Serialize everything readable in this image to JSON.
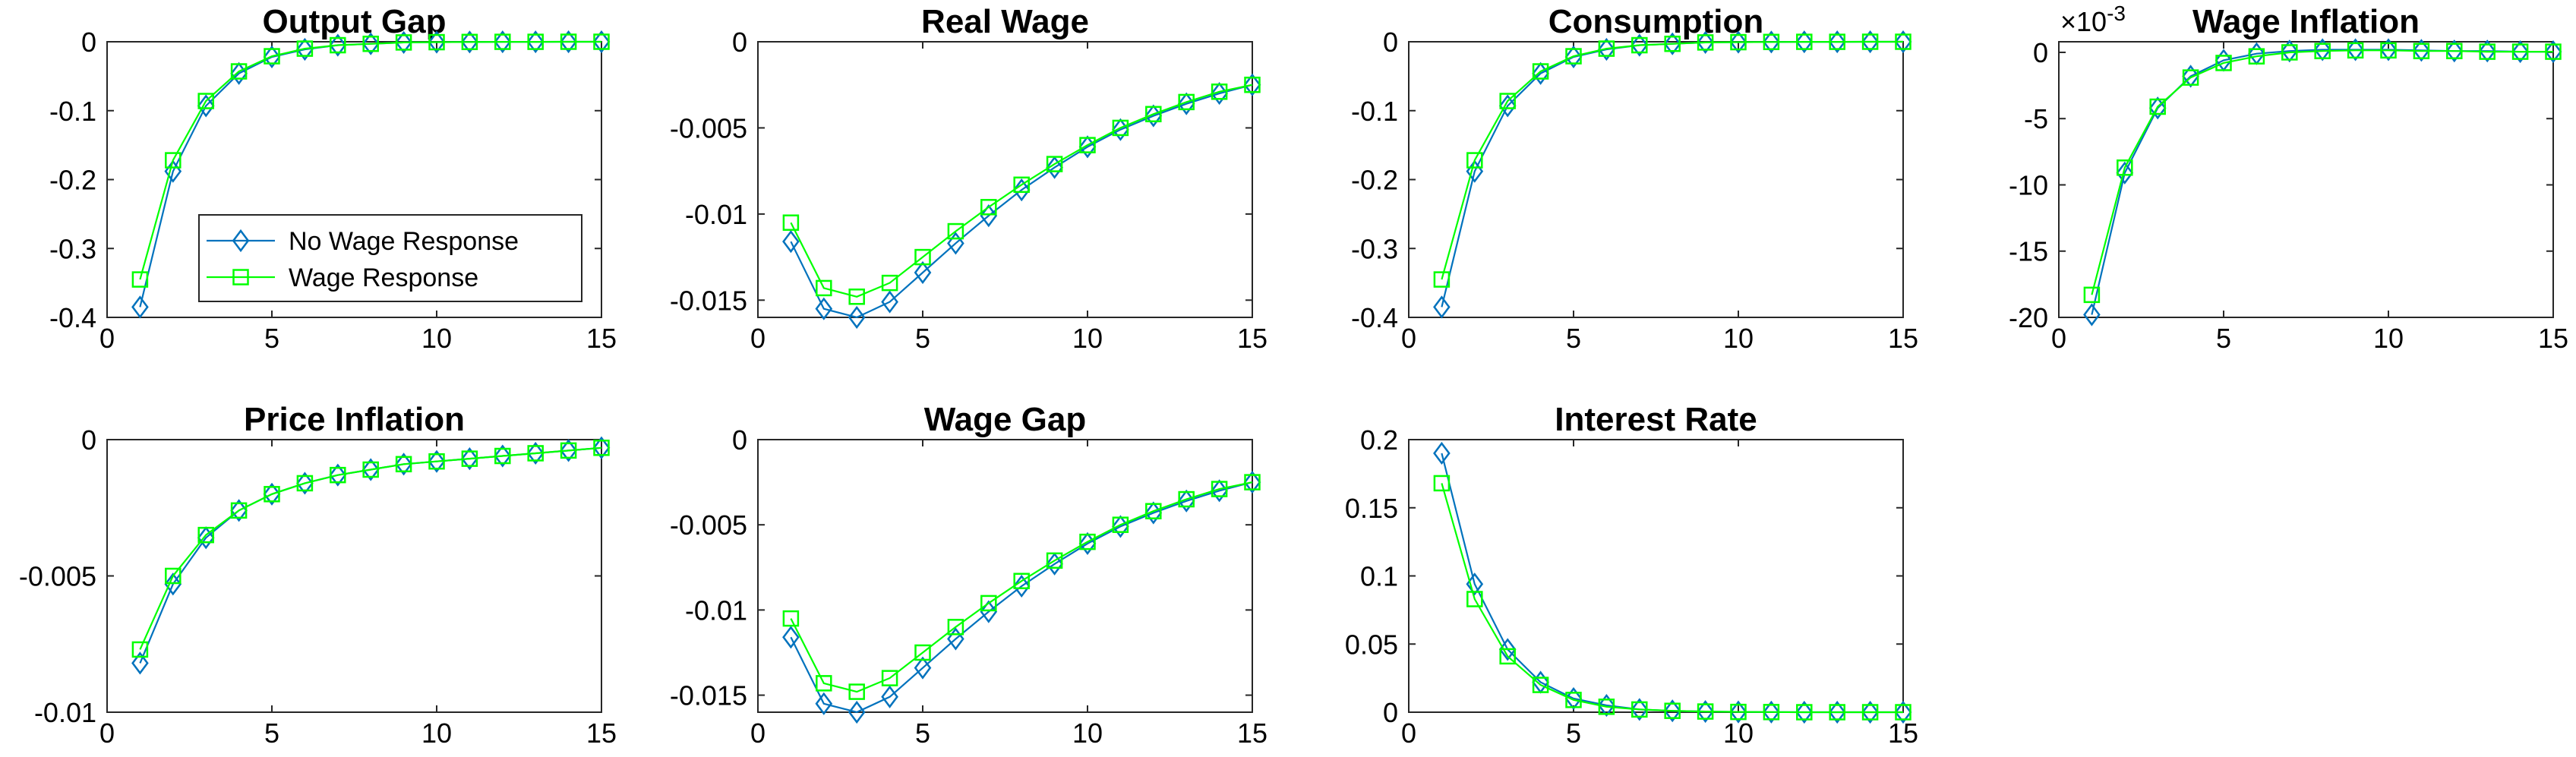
{
  "legend": {
    "entries": [
      {
        "name": "No Wage Response",
        "color": "#0072BD",
        "marker": "diamond"
      },
      {
        "name": "Wage Response",
        "color": "#00FF00",
        "marker": "square"
      }
    ],
    "placement": "inside lower-right of first panel"
  },
  "chart_data": [
    {
      "type": "line",
      "title": "Output Gap",
      "xlim": [
        0,
        15
      ],
      "ylim": [
        -0.4,
        0
      ],
      "xticks": [
        0,
        5,
        10,
        15
      ],
      "yticks": [
        -0.4,
        -0.3,
        -0.2,
        -0.1,
        0
      ],
      "yticklabels": [
        "-0.4",
        "-0.3",
        "-0.2",
        "-0.1",
        "0"
      ],
      "x": [
        1,
        2,
        3,
        4,
        5,
        6,
        7,
        8,
        9,
        10,
        11,
        12,
        13,
        14,
        15
      ],
      "series": [
        {
          "name": "No Wage Response",
          "values": [
            -0.385,
            -0.188,
            -0.093,
            -0.046,
            -0.022,
            -0.011,
            -0.005,
            -0.003,
            -0.001,
            -0.0006,
            -0.0003,
            -0.0001,
            -0.0001,
            0,
            0
          ]
        },
        {
          "name": "Wage Response",
          "values": [
            -0.345,
            -0.172,
            -0.086,
            -0.043,
            -0.021,
            -0.01,
            -0.005,
            -0.003,
            -0.001,
            -0.0006,
            -0.0003,
            -0.0001,
            -0.0001,
            0,
            0
          ]
        }
      ],
      "has_legend": true
    },
    {
      "type": "line",
      "title": "Real Wage",
      "xlim": [
        0,
        15
      ],
      "ylim": [
        -0.016,
        0
      ],
      "xticks": [
        0,
        5,
        10,
        15
      ],
      "yticks": [
        -0.015,
        -0.01,
        -0.005,
        0
      ],
      "yticklabels": [
        "-0.015",
        "-0.01",
        "-0.005",
        "0"
      ],
      "x": [
        1,
        2,
        3,
        4,
        5,
        6,
        7,
        8,
        9,
        10,
        11,
        12,
        13,
        14,
        15
      ],
      "series": [
        {
          "name": "No Wage Response",
          "values": [
            -0.0116,
            -0.0155,
            -0.016,
            -0.0151,
            -0.0134,
            -0.0117,
            -0.0101,
            -0.0086,
            -0.0073,
            -0.0061,
            -0.0051,
            -0.0043,
            -0.0036,
            -0.003,
            -0.0025
          ]
        },
        {
          "name": "Wage Response",
          "values": [
            -0.0105,
            -0.0143,
            -0.0148,
            -0.014,
            -0.0125,
            -0.011,
            -0.0096,
            -0.0083,
            -0.0071,
            -0.006,
            -0.005,
            -0.0042,
            -0.0035,
            -0.0029,
            -0.0025
          ]
        }
      ]
    },
    {
      "type": "line",
      "title": "Consumption",
      "xlim": [
        0,
        15
      ],
      "ylim": [
        -0.4,
        0
      ],
      "xticks": [
        0,
        5,
        10,
        15
      ],
      "yticks": [
        -0.4,
        -0.3,
        -0.2,
        -0.1,
        0
      ],
      "yticklabels": [
        "-0.4",
        "-0.3",
        "-0.2",
        "-0.1",
        "0"
      ],
      "x": [
        1,
        2,
        3,
        4,
        5,
        6,
        7,
        8,
        9,
        10,
        11,
        12,
        13,
        14,
        15
      ],
      "series": [
        {
          "name": "No Wage Response",
          "values": [
            -0.385,
            -0.188,
            -0.093,
            -0.046,
            -0.022,
            -0.011,
            -0.005,
            -0.003,
            -0.001,
            -0.0006,
            -0.0003,
            -0.0001,
            -0.0001,
            0,
            0
          ]
        },
        {
          "name": "Wage Response",
          "values": [
            -0.345,
            -0.172,
            -0.086,
            -0.043,
            -0.021,
            -0.01,
            -0.005,
            -0.003,
            -0.001,
            -0.0006,
            -0.0003,
            -0.0001,
            -0.0001,
            0,
            0
          ]
        }
      ]
    },
    {
      "type": "line",
      "title": "Wage Inflation",
      "xlim": [
        0,
        15
      ],
      "ylim": [
        -20,
        0.8
      ],
      "xticks": [
        0,
        5,
        10,
        15
      ],
      "yticks": [
        -20,
        -15,
        -10,
        -5,
        0
      ],
      "yticklabels": [
        "-20",
        "-15",
        "-10",
        "-5",
        "0"
      ],
      "y_exponent_base": "×10",
      "y_exponent_power": "-3",
      "x": [
        1,
        2,
        3,
        4,
        5,
        6,
        7,
        8,
        9,
        10,
        11,
        12,
        13,
        14,
        15
      ],
      "series": [
        {
          "name": "No Wage Response",
          "values": [
            -19.8,
            -9.1,
            -4.2,
            -1.8,
            -0.6,
            -0.1,
            0.1,
            0.2,
            0.2,
            0.2,
            0.15,
            0.1,
            0.1,
            0.05,
            0.05
          ]
        },
        {
          "name": "Wage Response",
          "values": [
            -18.3,
            -8.7,
            -4.1,
            -1.9,
            -0.8,
            -0.3,
            0,
            0.1,
            0.15,
            0.15,
            0.1,
            0.1,
            0.05,
            0.05,
            0.05
          ]
        }
      ]
    },
    {
      "type": "line",
      "title": "Price Inflation",
      "xlim": [
        0,
        15
      ],
      "ylim": [
        -0.01,
        0
      ],
      "xticks": [
        0,
        5,
        10,
        15
      ],
      "yticks": [
        -0.01,
        -0.005,
        0
      ],
      "yticklabels": [
        "-0.01",
        "-0.005",
        "0"
      ],
      "x": [
        1,
        2,
        3,
        4,
        5,
        6,
        7,
        8,
        9,
        10,
        11,
        12,
        13,
        14,
        15
      ],
      "series": [
        {
          "name": "No Wage Response",
          "values": [
            -0.0082,
            -0.0053,
            -0.0036,
            -0.0026,
            -0.002,
            -0.0016,
            -0.0013,
            -0.0011,
            -0.0009,
            -0.0008,
            -0.0007,
            -0.0006,
            -0.0005,
            -0.0004,
            -0.0003
          ]
        },
        {
          "name": "Wage Response",
          "values": [
            -0.0077,
            -0.005,
            -0.0035,
            -0.0026,
            -0.002,
            -0.0016,
            -0.0013,
            -0.0011,
            -0.0009,
            -0.0008,
            -0.0007,
            -0.0006,
            -0.0005,
            -0.0004,
            -0.0003
          ]
        }
      ]
    },
    {
      "type": "line",
      "title": "Wage Gap",
      "xlim": [
        0,
        15
      ],
      "ylim": [
        -0.016,
        0
      ],
      "xticks": [
        0,
        5,
        10,
        15
      ],
      "yticks": [
        -0.015,
        -0.01,
        -0.005,
        0
      ],
      "yticklabels": [
        "-0.015",
        "-0.01",
        "-0.005",
        "0"
      ],
      "x": [
        1,
        2,
        3,
        4,
        5,
        6,
        7,
        8,
        9,
        10,
        11,
        12,
        13,
        14,
        15
      ],
      "series": [
        {
          "name": "No Wage Response",
          "values": [
            -0.0116,
            -0.0155,
            -0.016,
            -0.0151,
            -0.0134,
            -0.0117,
            -0.0101,
            -0.0086,
            -0.0073,
            -0.0061,
            -0.0051,
            -0.0043,
            -0.0036,
            -0.003,
            -0.0025
          ]
        },
        {
          "name": "Wage Response",
          "values": [
            -0.0105,
            -0.0143,
            -0.0148,
            -0.014,
            -0.0125,
            -0.011,
            -0.0096,
            -0.0083,
            -0.0071,
            -0.006,
            -0.005,
            -0.0042,
            -0.0035,
            -0.0029,
            -0.0025
          ]
        }
      ]
    },
    {
      "type": "line",
      "title": "Interest Rate",
      "xlim": [
        0,
        15
      ],
      "ylim": [
        0,
        0.2
      ],
      "xticks": [
        0,
        5,
        10,
        15
      ],
      "yticks": [
        0,
        0.05,
        0.1,
        0.15,
        0.2
      ],
      "yticklabels": [
        "0",
        "0.05",
        "0.1",
        "0.15",
        "0.2"
      ],
      "x": [
        1,
        2,
        3,
        4,
        5,
        6,
        7,
        8,
        9,
        10,
        11,
        12,
        13,
        14,
        15
      ],
      "series": [
        {
          "name": "No Wage Response",
          "values": [
            0.19,
            0.094,
            0.046,
            0.022,
            0.01,
            0.005,
            0.002,
            0.001,
            0.0005,
            0.0002,
            0.0001,
            0,
            0,
            0,
            0
          ]
        },
        {
          "name": "Wage Response",
          "values": [
            0.168,
            0.083,
            0.041,
            0.02,
            0.009,
            0.004,
            0.002,
            0.001,
            0.0005,
            0.0002,
            0.0001,
            0,
            0,
            0,
            0
          ]
        }
      ]
    }
  ]
}
